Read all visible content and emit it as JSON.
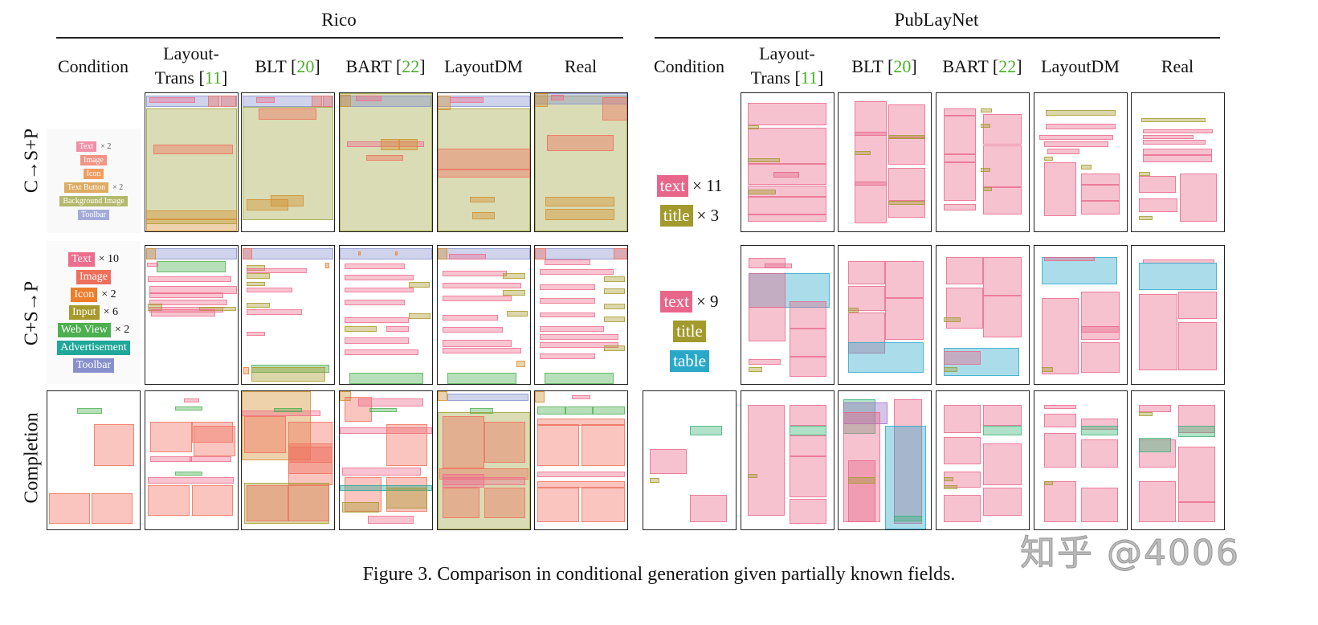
{
  "datasets": [
    {
      "title": "Rico"
    },
    {
      "title": "PubLayNet"
    }
  ],
  "columns": [
    {
      "line1": "Condition",
      "line2": "",
      "ref": ""
    },
    {
      "line1": "Layout-",
      "line2": "Trans",
      "ref": "11"
    },
    {
      "line1": "BLT",
      "line2": "",
      "ref": "20"
    },
    {
      "line1": "BART",
      "line2": "",
      "ref": "22"
    },
    {
      "line1": "LayoutDM",
      "line2": "",
      "ref": ""
    },
    {
      "line1": "Real",
      "line2": "",
      "ref": ""
    }
  ],
  "rows": [
    {
      "label": "C→S+P"
    },
    {
      "label": "C+S→P"
    },
    {
      "label": "Completion"
    }
  ],
  "conditions": {
    "rico_row1": [
      {
        "label": "Text",
        "count": "× 2",
        "cat": "text"
      },
      {
        "label": "Image",
        "count": "",
        "cat": "image"
      },
      {
        "label": "Icon",
        "count": "",
        "cat": "icon"
      },
      {
        "label": "Text Button",
        "count": "× 2",
        "cat": "textbutton"
      },
      {
        "label": "Background Image",
        "count": "",
        "cat": "bgimage"
      },
      {
        "label": "Toolbar",
        "count": "",
        "cat": "toolbar"
      }
    ],
    "rico_row2": [
      {
        "label": "Text",
        "count": "× 10",
        "cat": "text"
      },
      {
        "label": "Image",
        "count": "",
        "cat": "image"
      },
      {
        "label": "Icon",
        "count": "× 2",
        "cat": "icon"
      },
      {
        "label": "Input",
        "count": "× 6",
        "cat": "input"
      },
      {
        "label": "Web View",
        "count": "× 2",
        "cat": "webview"
      },
      {
        "label": "Advertisement",
        "count": "",
        "cat": "advert"
      },
      {
        "label": "Toolbar",
        "count": "",
        "cat": "toolbar"
      }
    ],
    "pub_row1": [
      {
        "label": "text",
        "count": "× 11",
        "cat": "ptext"
      },
      {
        "label": "title",
        "count": "× 3",
        "cat": "ptitle"
      }
    ],
    "pub_row2": [
      {
        "label": "text",
        "count": "× 9",
        "cat": "ptext"
      },
      {
        "label": "title",
        "count": "",
        "cat": "ptitle"
      },
      {
        "label": "table",
        "count": "",
        "cat": "ptable"
      }
    ]
  },
  "category_colors": {
    "text": "#ee6c8c",
    "image": "#ef6f5c",
    "icon": "#ee7d2c",
    "textbutton": "#d28f2e",
    "bgimage": "#9aa23a",
    "toolbar": "#8790cc",
    "input": "#a8992c",
    "webview": "#4caf50",
    "advert": "#1fa89a",
    "ptext": "#e8668a",
    "ptitle": "#a39a2d",
    "ptable": "#2aa8c8",
    "pfigure": "#3cb378",
    "plist": "#9a6fc8"
  },
  "caption": "Figure 3. Comparison in conditional generation given partially known fields.",
  "watermark": "知乎 @4006"
}
